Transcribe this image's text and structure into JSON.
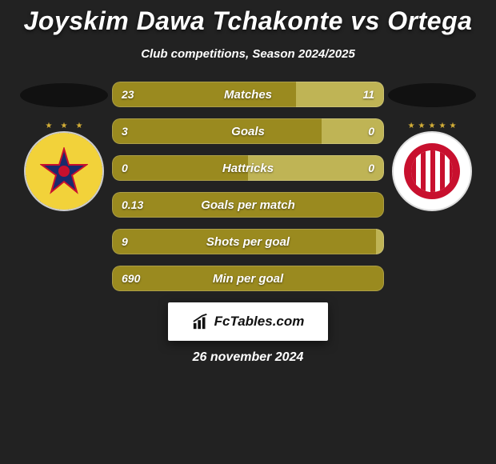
{
  "title": "Joyskim Dawa Tchakonte vs Ortega",
  "subtitle": "Club competitions, Season 2024/2025",
  "date": "26 november 2024",
  "brand": "FcTables.com",
  "colors": {
    "left": "#9a8a1f",
    "right": "#bfb455",
    "background": "#222222",
    "text": "#ffffff"
  },
  "left_team": {
    "badge_primary": "#f2d23a",
    "badge_secondary": "#1a2a6c",
    "badge_accent": "#c8102e"
  },
  "right_team": {
    "badge_primary": "#c8102e",
    "badge_secondary": "#ffffff"
  },
  "stats": [
    {
      "label": "Matches",
      "left_value": "23",
      "right_value": "11",
      "left_pct": 67.6,
      "right_pct": 32.4
    },
    {
      "label": "Goals",
      "left_value": "3",
      "right_value": "0",
      "left_pct": 77.0,
      "right_pct": 23.0
    },
    {
      "label": "Hattricks",
      "left_value": "0",
      "right_value": "0",
      "left_pct": 50.0,
      "right_pct": 50.0
    },
    {
      "label": "Goals per match",
      "left_value": "0.13",
      "right_value": "",
      "left_pct": 100.0,
      "right_pct": 0.0
    },
    {
      "label": "Shots per goal",
      "left_value": "9",
      "right_value": "",
      "left_pct": 97.0,
      "right_pct": 3.0
    },
    {
      "label": "Min per goal",
      "left_value": "690",
      "right_value": "",
      "left_pct": 100.0,
      "right_pct": 0.0
    }
  ]
}
